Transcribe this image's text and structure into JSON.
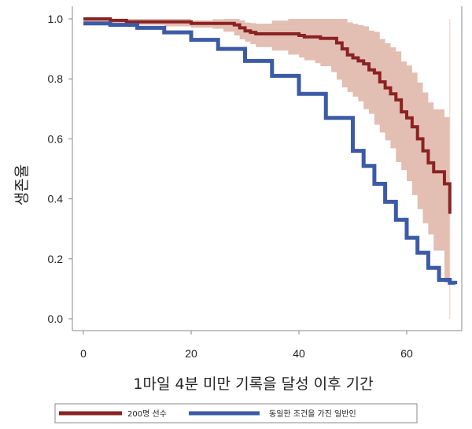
{
  "chart_data": {
    "type": "line",
    "title": "",
    "xlabel": "1마일 4분 미만 기록을 달성 이후 기간",
    "ylabel": "생존율",
    "xlim": [
      0,
      70
    ],
    "ylim": [
      0,
      1.05
    ],
    "x_ticks": [
      "0",
      "20",
      "40",
      "60"
    ],
    "y_ticks": [
      "0.0",
      "0.2",
      "0.4",
      "0.6",
      "0.8",
      "1.0"
    ],
    "grid": false,
    "legend_position": "bottom",
    "series": [
      {
        "name": "200명 선수",
        "color": "#8b2222",
        "band_color": "#d9a89a",
        "step": true,
        "x": [
          0,
          5,
          8,
          12,
          15,
          20,
          24,
          26,
          28,
          29,
          30,
          31,
          32,
          35,
          38,
          40,
          41,
          43,
          44,
          46,
          47,
          48,
          49,
          50,
          51,
          52,
          53,
          54,
          55,
          56,
          57,
          58,
          59,
          60,
          61,
          62,
          63,
          64,
          65,
          67,
          68
        ],
        "y": [
          1.0,
          0.995,
          0.99,
          0.99,
          0.99,
          0.985,
          0.985,
          0.985,
          0.98,
          0.97,
          0.96,
          0.955,
          0.95,
          0.95,
          0.95,
          0.945,
          0.94,
          0.94,
          0.935,
          0.935,
          0.92,
          0.9,
          0.88,
          0.87,
          0.86,
          0.85,
          0.83,
          0.82,
          0.79,
          0.77,
          0.75,
          0.73,
          0.69,
          0.67,
          0.64,
          0.6,
          0.56,
          0.52,
          0.49,
          0.45,
          0.35
        ]
      },
      {
        "name": "동일한 조건을 가진 일반인",
        "color": "#3c5aa6",
        "step": true,
        "x": [
          0,
          5,
          10,
          15,
          20,
          25,
          30,
          35,
          40,
          45,
          50,
          52,
          54,
          56,
          58,
          60,
          62,
          64,
          66,
          68,
          69
        ],
        "y": [
          0.985,
          0.98,
          0.97,
          0.955,
          0.93,
          0.9,
          0.86,
          0.81,
          0.75,
          0.67,
          0.56,
          0.51,
          0.45,
          0.39,
          0.33,
          0.27,
          0.22,
          0.17,
          0.13,
          0.12,
          0.115
        ]
      }
    ]
  }
}
